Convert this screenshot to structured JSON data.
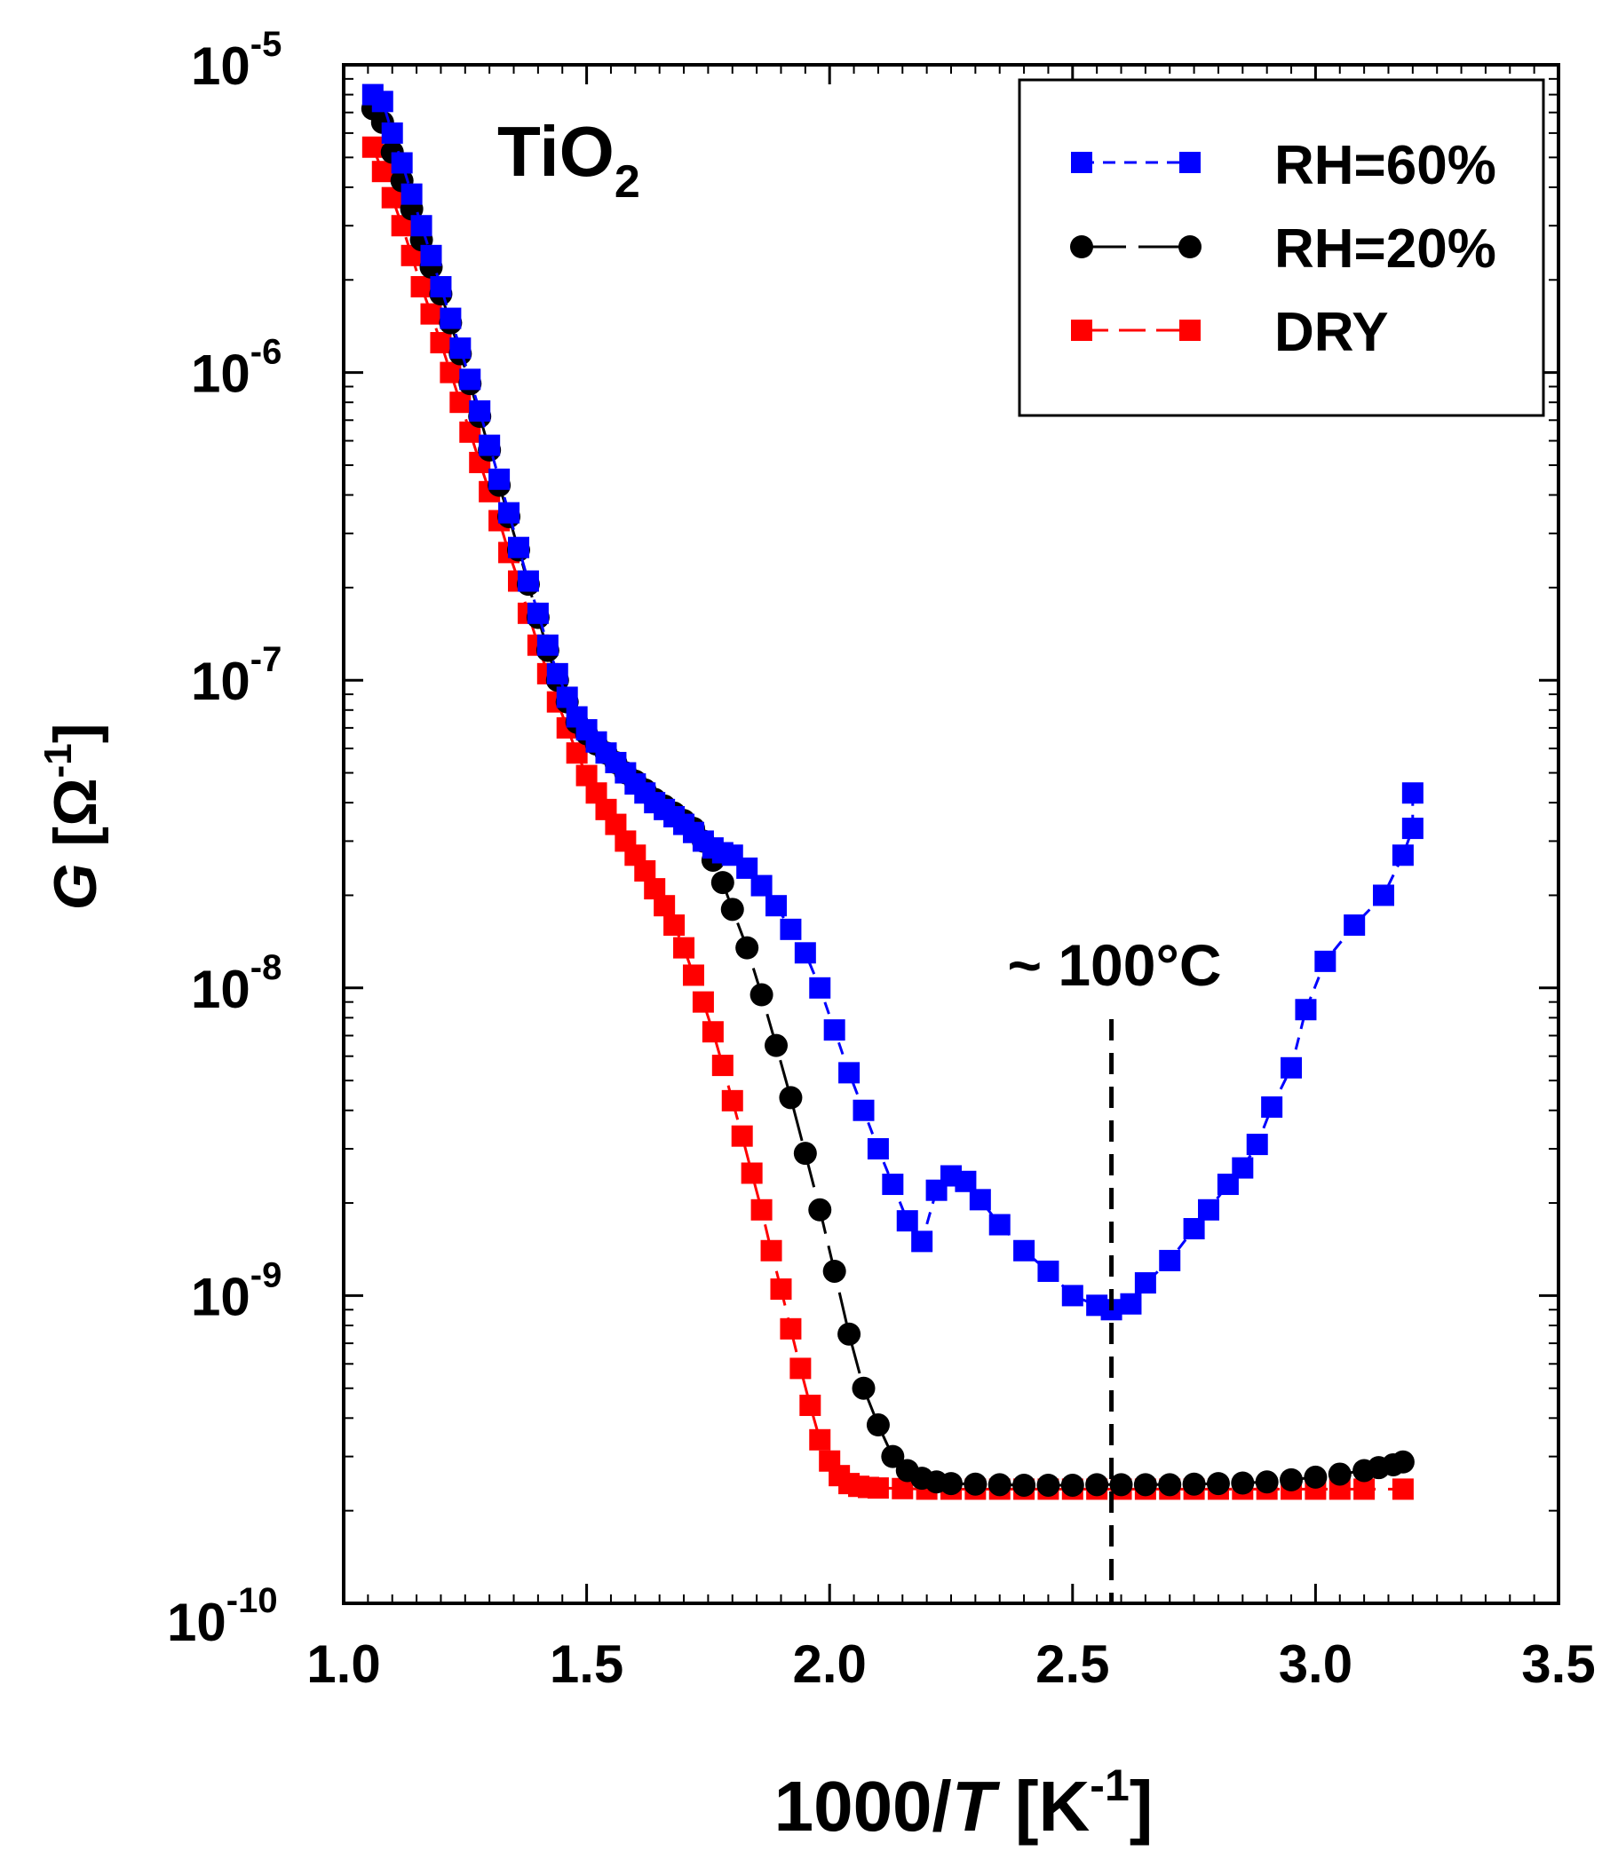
{
  "chart_data": {
    "type": "scatter",
    "title": "TiO",
    "title_subscript": "2",
    "xlabel": "1000/T [K⁻¹]",
    "xlabel_parts": {
      "main": "1000/",
      "var": "T",
      "unit_open": " [K",
      "sup": "-1",
      "unit_close": "]"
    },
    "ylabel": "G [Ω⁻¹]",
    "ylabel_parts": {
      "var": "G",
      "unit_open": " [Ω",
      "sup": "-1",
      "unit_close": "]"
    },
    "xlim": [
      1.0,
      3.5
    ],
    "ylim": [
      1e-10,
      1e-05
    ],
    "yscale": "log",
    "x_ticks": [
      "1.0",
      "1.5",
      "2.0",
      "2.5",
      "3.0",
      "3.5"
    ],
    "y_ticks": [
      {
        "base": "10",
        "exp": "-10",
        "value": 1e-10
      },
      {
        "base": "10",
        "exp": "-9",
        "value": 1e-09
      },
      {
        "base": "10",
        "exp": "-8",
        "value": 1e-08
      },
      {
        "base": "10",
        "exp": "-7",
        "value": 1e-07
      },
      {
        "base": "10",
        "exp": "-6",
        "value": 1e-06
      },
      {
        "base": "10",
        "exp": "-5",
        "value": 1e-05
      }
    ],
    "grid": false,
    "legend_position": "top-right",
    "annotation": {
      "text": "~ 100°C",
      "x": 2.58,
      "line_style": "dashed"
    },
    "series": [
      {
        "name": "RH=60%",
        "color": "#0000ff",
        "marker": "square",
        "line": "short-dash",
        "x": [
          1.06,
          1.08,
          1.1,
          1.12,
          1.14,
          1.16,
          1.18,
          1.2,
          1.22,
          1.24,
          1.26,
          1.28,
          1.3,
          1.32,
          1.34,
          1.36,
          1.38,
          1.4,
          1.42,
          1.44,
          1.46,
          1.48,
          1.5,
          1.52,
          1.54,
          1.56,
          1.58,
          1.6,
          1.62,
          1.64,
          1.66,
          1.68,
          1.7,
          1.72,
          1.74,
          1.76,
          1.78,
          1.8,
          1.83,
          1.86,
          1.89,
          1.92,
          1.95,
          1.98,
          2.01,
          2.04,
          2.07,
          2.1,
          2.13,
          2.16,
          2.19,
          2.22,
          2.25,
          2.28,
          2.31,
          2.35,
          2.4,
          2.45,
          2.5,
          2.55,
          2.58,
          2.62,
          2.65,
          2.7,
          2.75,
          2.78,
          2.82,
          2.85,
          2.88,
          2.91,
          2.95,
          2.98,
          3.02,
          3.08,
          3.14,
          3.18,
          3.2,
          3.2
        ],
        "y": [
          8e-06,
          7.6e-06,
          6e-06,
          4.8e-06,
          3.8e-06,
          3e-06,
          2.4e-06,
          1.9e-06,
          1.5e-06,
          1.2e-06,
          9.5e-07,
          7.5e-07,
          5.8e-07,
          4.5e-07,
          3.5e-07,
          2.7e-07,
          2.1e-07,
          1.65e-07,
          1.3e-07,
          1.05e-07,
          8.8e-08,
          7.6e-08,
          6.9e-08,
          6.3e-08,
          5.8e-08,
          5.4e-08,
          5e-08,
          4.6e-08,
          4.3e-08,
          4e-08,
          3.8e-08,
          3.6e-08,
          3.4e-08,
          3.2e-08,
          3e-08,
          2.85e-08,
          2.75e-08,
          2.7e-08,
          2.45e-08,
          2.15e-08,
          1.85e-08,
          1.55e-08,
          1.3e-08,
          1e-08,
          7.3e-09,
          5.3e-09,
          4e-09,
          3e-09,
          2.3e-09,
          1.75e-09,
          1.5e-09,
          2.2e-09,
          2.45e-09,
          2.35e-09,
          2.05e-09,
          1.7e-09,
          1.4e-09,
          1.2e-09,
          1e-09,
          9.3e-10,
          9e-10,
          9.4e-10,
          1.1e-09,
          1.3e-09,
          1.65e-09,
          1.9e-09,
          2.3e-09,
          2.6e-09,
          3.1e-09,
          4.1e-09,
          5.5e-09,
          8.5e-09,
          1.22e-08,
          1.6e-08,
          2e-08,
          2.7e-08,
          3.3e-08,
          4.3e-08
        ]
      },
      {
        "name": "RH=20%",
        "color": "#000000",
        "marker": "circle",
        "line": "long-dash",
        "x": [
          1.06,
          1.08,
          1.1,
          1.12,
          1.14,
          1.16,
          1.18,
          1.2,
          1.22,
          1.24,
          1.26,
          1.28,
          1.3,
          1.32,
          1.34,
          1.36,
          1.38,
          1.4,
          1.42,
          1.44,
          1.46,
          1.48,
          1.5,
          1.52,
          1.54,
          1.56,
          1.58,
          1.6,
          1.62,
          1.64,
          1.66,
          1.68,
          1.7,
          1.72,
          1.74,
          1.76,
          1.78,
          1.8,
          1.83,
          1.86,
          1.89,
          1.92,
          1.95,
          1.98,
          2.01,
          2.04,
          2.07,
          2.1,
          2.13,
          2.16,
          2.19,
          2.22,
          2.25,
          2.3,
          2.35,
          2.4,
          2.45,
          2.5,
          2.55,
          2.6,
          2.65,
          2.7,
          2.75,
          2.8,
          2.85,
          2.9,
          2.95,
          3.0,
          3.05,
          3.1,
          3.13,
          3.16,
          3.18
        ],
        "y": [
          7.2e-06,
          6.5e-06,
          5.2e-06,
          4.2e-06,
          3.4e-06,
          2.7e-06,
          2.2e-06,
          1.8e-06,
          1.45e-06,
          1.15e-06,
          9.2e-07,
          7.2e-07,
          5.6e-07,
          4.3e-07,
          3.4e-07,
          2.65e-07,
          2.05e-07,
          1.6e-07,
          1.25e-07,
          1e-07,
          8.5e-08,
          7.3e-08,
          6.7e-08,
          6.2e-08,
          5.8e-08,
          5.4e-08,
          5e-08,
          4.7e-08,
          4.4e-08,
          4.1e-08,
          3.9e-08,
          3.7e-08,
          3.5e-08,
          3.3e-08,
          3e-08,
          2.6e-08,
          2.2e-08,
          1.8e-08,
          1.35e-08,
          9.5e-09,
          6.5e-09,
          4.4e-09,
          2.9e-09,
          1.9e-09,
          1.2e-09,
          7.5e-10,
          5e-10,
          3.8e-10,
          3e-10,
          2.7e-10,
          2.55e-10,
          2.48e-10,
          2.45e-10,
          2.44e-10,
          2.43e-10,
          2.42e-10,
          2.42e-10,
          2.42e-10,
          2.43e-10,
          2.43e-10,
          2.43e-10,
          2.43e-10,
          2.44e-10,
          2.45e-10,
          2.46e-10,
          2.48e-10,
          2.52e-10,
          2.57e-10,
          2.63e-10,
          2.7e-10,
          2.76e-10,
          2.82e-10,
          2.88e-10
        ]
      },
      {
        "name": "DRY",
        "color": "#ff0000",
        "marker": "square",
        "line": "long-dash",
        "x": [
          1.06,
          1.08,
          1.1,
          1.12,
          1.14,
          1.16,
          1.18,
          1.2,
          1.22,
          1.24,
          1.26,
          1.28,
          1.3,
          1.32,
          1.34,
          1.36,
          1.38,
          1.4,
          1.42,
          1.44,
          1.46,
          1.48,
          1.5,
          1.52,
          1.54,
          1.56,
          1.58,
          1.6,
          1.62,
          1.64,
          1.66,
          1.68,
          1.7,
          1.72,
          1.74,
          1.76,
          1.78,
          1.8,
          1.82,
          1.84,
          1.86,
          1.88,
          1.9,
          1.92,
          1.94,
          1.96,
          1.98,
          2.0,
          2.02,
          2.04,
          2.06,
          2.08,
          2.1,
          2.15,
          2.2,
          2.25,
          2.3,
          2.35,
          2.4,
          2.45,
          2.5,
          2.55,
          2.6,
          2.65,
          2.7,
          2.75,
          2.8,
          2.85,
          2.9,
          2.95,
          3.0,
          3.05,
          3.1,
          3.18
        ],
        "y": [
          5.4e-06,
          4.5e-06,
          3.7e-06,
          3e-06,
          2.4e-06,
          1.9e-06,
          1.55e-06,
          1.25e-06,
          1e-06,
          8e-07,
          6.4e-07,
          5.1e-07,
          4.1e-07,
          3.3e-07,
          2.6e-07,
          2.1e-07,
          1.65e-07,
          1.3e-07,
          1.05e-07,
          8.5e-08,
          7e-08,
          5.8e-08,
          4.9e-08,
          4.3e-08,
          3.8e-08,
          3.4e-08,
          3e-08,
          2.7e-08,
          2.4e-08,
          2.1e-08,
          1.85e-08,
          1.6e-08,
          1.35e-08,
          1.1e-08,
          9e-09,
          7.2e-09,
          5.6e-09,
          4.3e-09,
          3.3e-09,
          2.5e-09,
          1.9e-09,
          1.4e-09,
          1.05e-09,
          7.8e-10,
          5.8e-10,
          4.4e-10,
          3.4e-10,
          2.9e-10,
          2.6e-10,
          2.45e-10,
          2.4e-10,
          2.38e-10,
          2.37e-10,
          2.36e-10,
          2.35e-10,
          2.35e-10,
          2.35e-10,
          2.35e-10,
          2.35e-10,
          2.35e-10,
          2.35e-10,
          2.35e-10,
          2.35e-10,
          2.35e-10,
          2.35e-10,
          2.35e-10,
          2.35e-10,
          2.35e-10,
          2.35e-10,
          2.35e-10,
          2.35e-10,
          2.35e-10,
          2.35e-10,
          2.35e-10
        ]
      }
    ]
  }
}
